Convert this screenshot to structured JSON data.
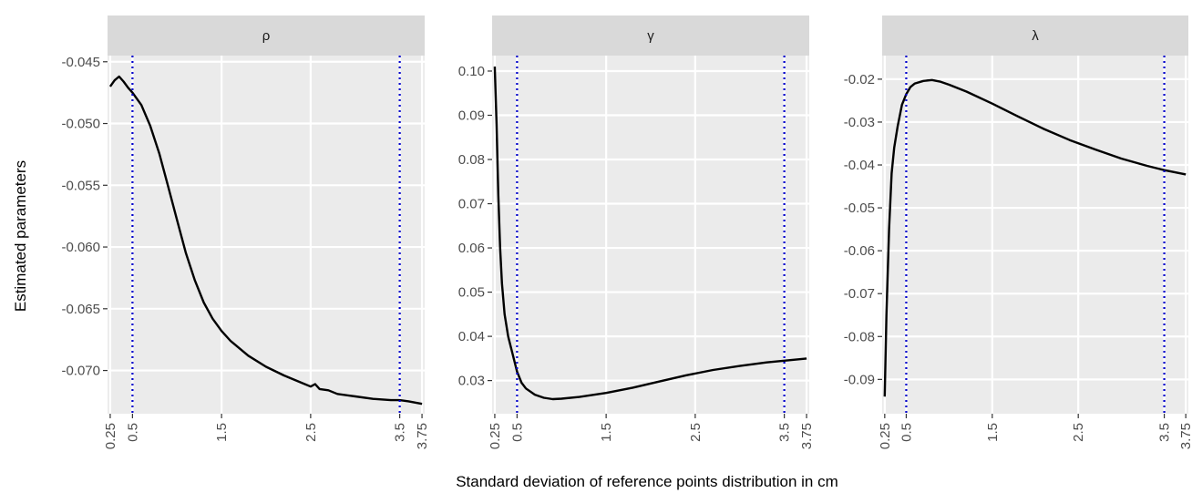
{
  "chart_data": {
    "type": "line",
    "xlabel": "Standard deviation of reference points distribution in cm",
    "ylabel": "Estimated parameters",
    "x_ticks": [
      "0.25",
      "0.5",
      "1.5",
      "2.5",
      "3.5",
      "3.75"
    ],
    "xlim": [
      0.22,
      3.78
    ],
    "reference_lines_x": [
      0.5,
      3.5
    ],
    "colors": {
      "panel_bg": "#ebebeb",
      "strip_bg": "#d9d9d9",
      "grid": "#ffffff",
      "line": "#000000",
      "reference_line": "#0000cc"
    },
    "grid": true,
    "panels": [
      {
        "title": "ρ",
        "ylim": [
          -0.0735,
          -0.0445
        ],
        "y_ticks": [
          "-0.045",
          "-0.050",
          "-0.055",
          "-0.060",
          "-0.065",
          "-0.070"
        ],
        "y_tick_values": [
          -0.045,
          -0.05,
          -0.055,
          -0.06,
          -0.065,
          -0.07
        ],
        "x": [
          0.25,
          0.3,
          0.35,
          0.4,
          0.45,
          0.5,
          0.6,
          0.7,
          0.8,
          0.9,
          1.0,
          1.1,
          1.2,
          1.3,
          1.4,
          1.5,
          1.6,
          1.8,
          2.0,
          2.2,
          2.4,
          2.5,
          2.55,
          2.6,
          2.7,
          2.8,
          3.0,
          3.2,
          3.4,
          3.5,
          3.6,
          3.75
        ],
        "y": [
          -0.047,
          -0.0465,
          -0.0462,
          -0.0466,
          -0.0471,
          -0.0475,
          -0.0485,
          -0.0502,
          -0.0524,
          -0.0551,
          -0.0578,
          -0.0605,
          -0.0627,
          -0.0645,
          -0.0658,
          -0.0668,
          -0.0676,
          -0.0688,
          -0.0697,
          -0.0704,
          -0.071,
          -0.0713,
          -0.0711,
          -0.0715,
          -0.0716,
          -0.0719,
          -0.0721,
          -0.0723,
          -0.0724,
          -0.0724,
          -0.0725,
          -0.0727
        ]
      },
      {
        "title": "γ",
        "ylim": [
          0.0225,
          0.1035
        ],
        "y_ticks": [
          "0.10",
          "0.09",
          "0.08",
          "0.07",
          "0.06",
          "0.05",
          "0.04",
          "0.03"
        ],
        "y_tick_values": [
          0.1,
          0.09,
          0.08,
          0.07,
          0.06,
          0.05,
          0.04,
          0.03
        ],
        "x": [
          0.25,
          0.27,
          0.29,
          0.31,
          0.33,
          0.36,
          0.4,
          0.45,
          0.5,
          0.55,
          0.6,
          0.7,
          0.8,
          0.9,
          1.0,
          1.2,
          1.5,
          1.8,
          2.1,
          2.4,
          2.7,
          3.0,
          3.3,
          3.5,
          3.75
        ],
        "y": [
          0.101,
          0.088,
          0.072,
          0.06,
          0.052,
          0.045,
          0.04,
          0.036,
          0.032,
          0.0295,
          0.0282,
          0.0268,
          0.0261,
          0.0258,
          0.0259,
          0.0263,
          0.0272,
          0.0284,
          0.0298,
          0.0312,
          0.0324,
          0.0333,
          0.0341,
          0.0345,
          0.035
        ]
      },
      {
        "title": "λ",
        "ylim": [
          -0.098,
          -0.0145
        ],
        "y_ticks": [
          "-0.02",
          "-0.03",
          "-0.04",
          "-0.05",
          "-0.06",
          "-0.07",
          "-0.08",
          "-0.09"
        ],
        "y_tick_values": [
          -0.02,
          -0.03,
          -0.04,
          -0.05,
          -0.06,
          -0.07,
          -0.08,
          -0.09
        ],
        "x": [
          0.25,
          0.27,
          0.3,
          0.33,
          0.36,
          0.4,
          0.45,
          0.5,
          0.55,
          0.6,
          0.7,
          0.8,
          0.9,
          1.0,
          1.2,
          1.5,
          1.8,
          2.1,
          2.4,
          2.7,
          3.0,
          3.3,
          3.5,
          3.75
        ],
        "y": [
          -0.094,
          -0.075,
          -0.055,
          -0.042,
          -0.036,
          -0.031,
          -0.026,
          -0.0235,
          -0.0218,
          -0.021,
          -0.0204,
          -0.0202,
          -0.0206,
          -0.0213,
          -0.0229,
          -0.0257,
          -0.0287,
          -0.0316,
          -0.0342,
          -0.0364,
          -0.0385,
          -0.0402,
          -0.0412,
          -0.0422
        ]
      }
    ]
  }
}
